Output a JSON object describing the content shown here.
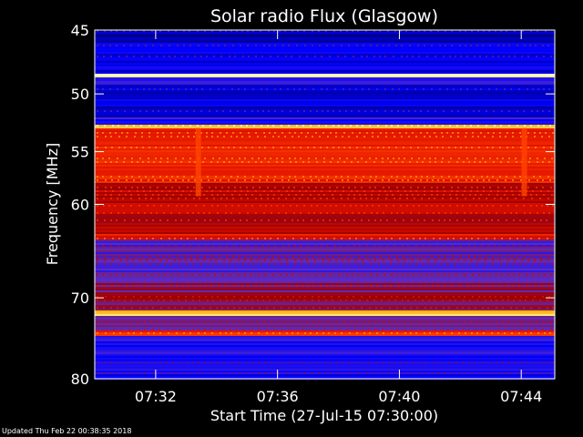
{
  "chart_data": {
    "type": "heatmap",
    "title": "Solar radio Flux (Glasgow)",
    "xlabel": "Start Time (27-Jul-15 07:30:00)",
    "ylabel": "Frequency [MHz]",
    "x_unit": "minutes after 07:30:00",
    "xlim": [
      0,
      15.1
    ],
    "ylim": [
      45,
      80
    ],
    "y_scale": "log",
    "y_inverted": true,
    "x_ticks": [
      {
        "value": 2,
        "label": "07:32"
      },
      {
        "value": 6,
        "label": "07:36"
      },
      {
        "value": 10,
        "label": "07:40"
      },
      {
        "value": 14,
        "label": "07:44"
      }
    ],
    "y_ticks": [
      {
        "value": 45,
        "label": "45"
      },
      {
        "value": 50,
        "label": "50"
      },
      {
        "value": 55,
        "label": "55"
      },
      {
        "value": 60,
        "label": "60"
      },
      {
        "value": 70,
        "label": "70"
      },
      {
        "value": 80,
        "label": "80"
      }
    ],
    "colormap": [
      "#000080",
      "#0000ff",
      "#5a2cc8",
      "#a00000",
      "#e01000",
      "#ff4000",
      "#ffb000",
      "#ffffc0"
    ],
    "frequency_bands": [
      {
        "from": 45.0,
        "to": 45.9,
        "level": 0.05
      },
      {
        "from": 45.9,
        "to": 48.3,
        "level": 0.12
      },
      {
        "from": 48.3,
        "to": 48.6,
        "level": 0.95
      },
      {
        "from": 48.6,
        "to": 49.3,
        "level": 0.18
      },
      {
        "from": 49.3,
        "to": 52.0,
        "level": 0.1
      },
      {
        "from": 52.0,
        "to": 52.6,
        "level": 0.2
      },
      {
        "from": 52.6,
        "to": 52.9,
        "level": 0.85
      },
      {
        "from": 52.9,
        "to": 58.0,
        "level": 0.62
      },
      {
        "from": 58.0,
        "to": 63.0,
        "level": 0.48
      },
      {
        "from": 63.0,
        "to": 63.6,
        "level": 0.58
      },
      {
        "from": 63.6,
        "to": 68.0,
        "level": 0.28
      },
      {
        "from": 68.0,
        "to": 71.5,
        "level": 0.36
      },
      {
        "from": 71.5,
        "to": 72.1,
        "level": 0.9
      },
      {
        "from": 72.1,
        "to": 73.8,
        "level": 0.32
      },
      {
        "from": 73.8,
        "to": 74.6,
        "level": 0.62
      },
      {
        "from": 74.6,
        "to": 80.0,
        "level": 0.18
      }
    ],
    "bursts": [
      {
        "time": 3.4,
        "from": 52.9,
        "to": 59.2,
        "level": 0.72
      },
      {
        "time": 14.1,
        "from": 52.9,
        "to": 59.2,
        "level": 0.72
      }
    ]
  },
  "footer": "Updated Thu Feb 22 00:38:35 2018"
}
